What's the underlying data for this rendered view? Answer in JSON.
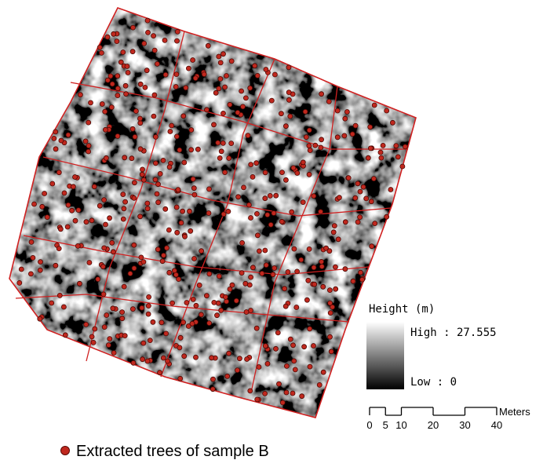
{
  "legend": {
    "title": "Height (m)",
    "high_label": "High : 27.555",
    "low_label": "Low : 0"
  },
  "scale_bar": {
    "ticks": [
      0,
      5,
      10,
      20,
      30,
      40
    ],
    "unit": "Meters"
  },
  "point_legend": {
    "label": "Extracted trees of sample B"
  }
}
